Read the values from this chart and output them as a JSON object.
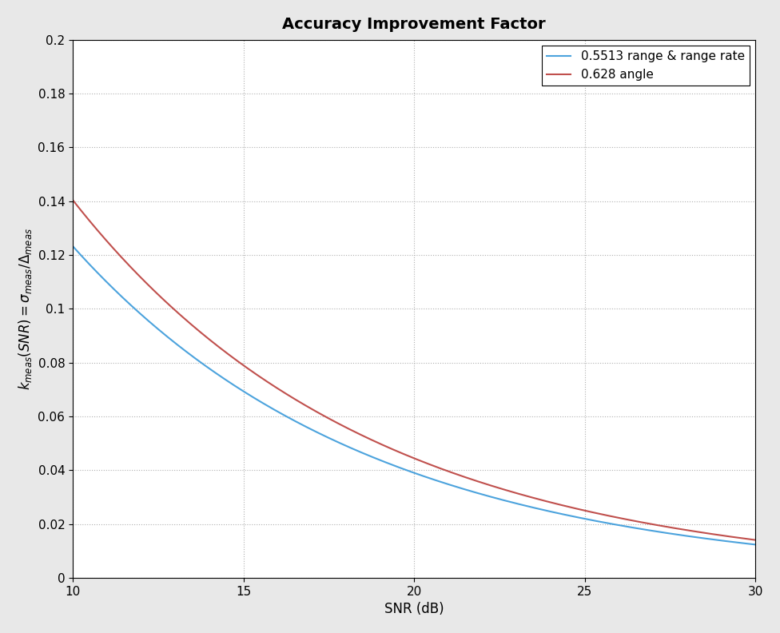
{
  "title": "Accuracy Improvement Factor",
  "xlabel": "SNR (dB)",
  "ylabel": "$k_{meas}(SNR) = \\sigma_{meas}/\\Delta_{meas}$",
  "xlim": [
    10,
    30
  ],
  "ylim": [
    0,
    0.2
  ],
  "xticks": [
    10,
    15,
    20,
    25,
    30
  ],
  "yticks": [
    0,
    0.02,
    0.04,
    0.06,
    0.08,
    0.1,
    0.12,
    0.14,
    0.16,
    0.18,
    0.2
  ],
  "snr_min": 10,
  "snr_max": 30,
  "snr_points": 500,
  "coeff_blue": 0.5513,
  "coeff_red": 0.628,
  "line_color_blue": "#4CA3DD",
  "line_color_red": "#C0504D",
  "legend_label_blue": "0.5513 range & range rate",
  "legend_label_red": "0.628 angle",
  "background_color": "#E8E8E8",
  "axes_background": "#FFFFFF",
  "grid_color": "#B0B0B0",
  "title_fontsize": 14,
  "label_fontsize": 12,
  "tick_fontsize": 11,
  "legend_fontsize": 11,
  "linewidth": 1.5
}
